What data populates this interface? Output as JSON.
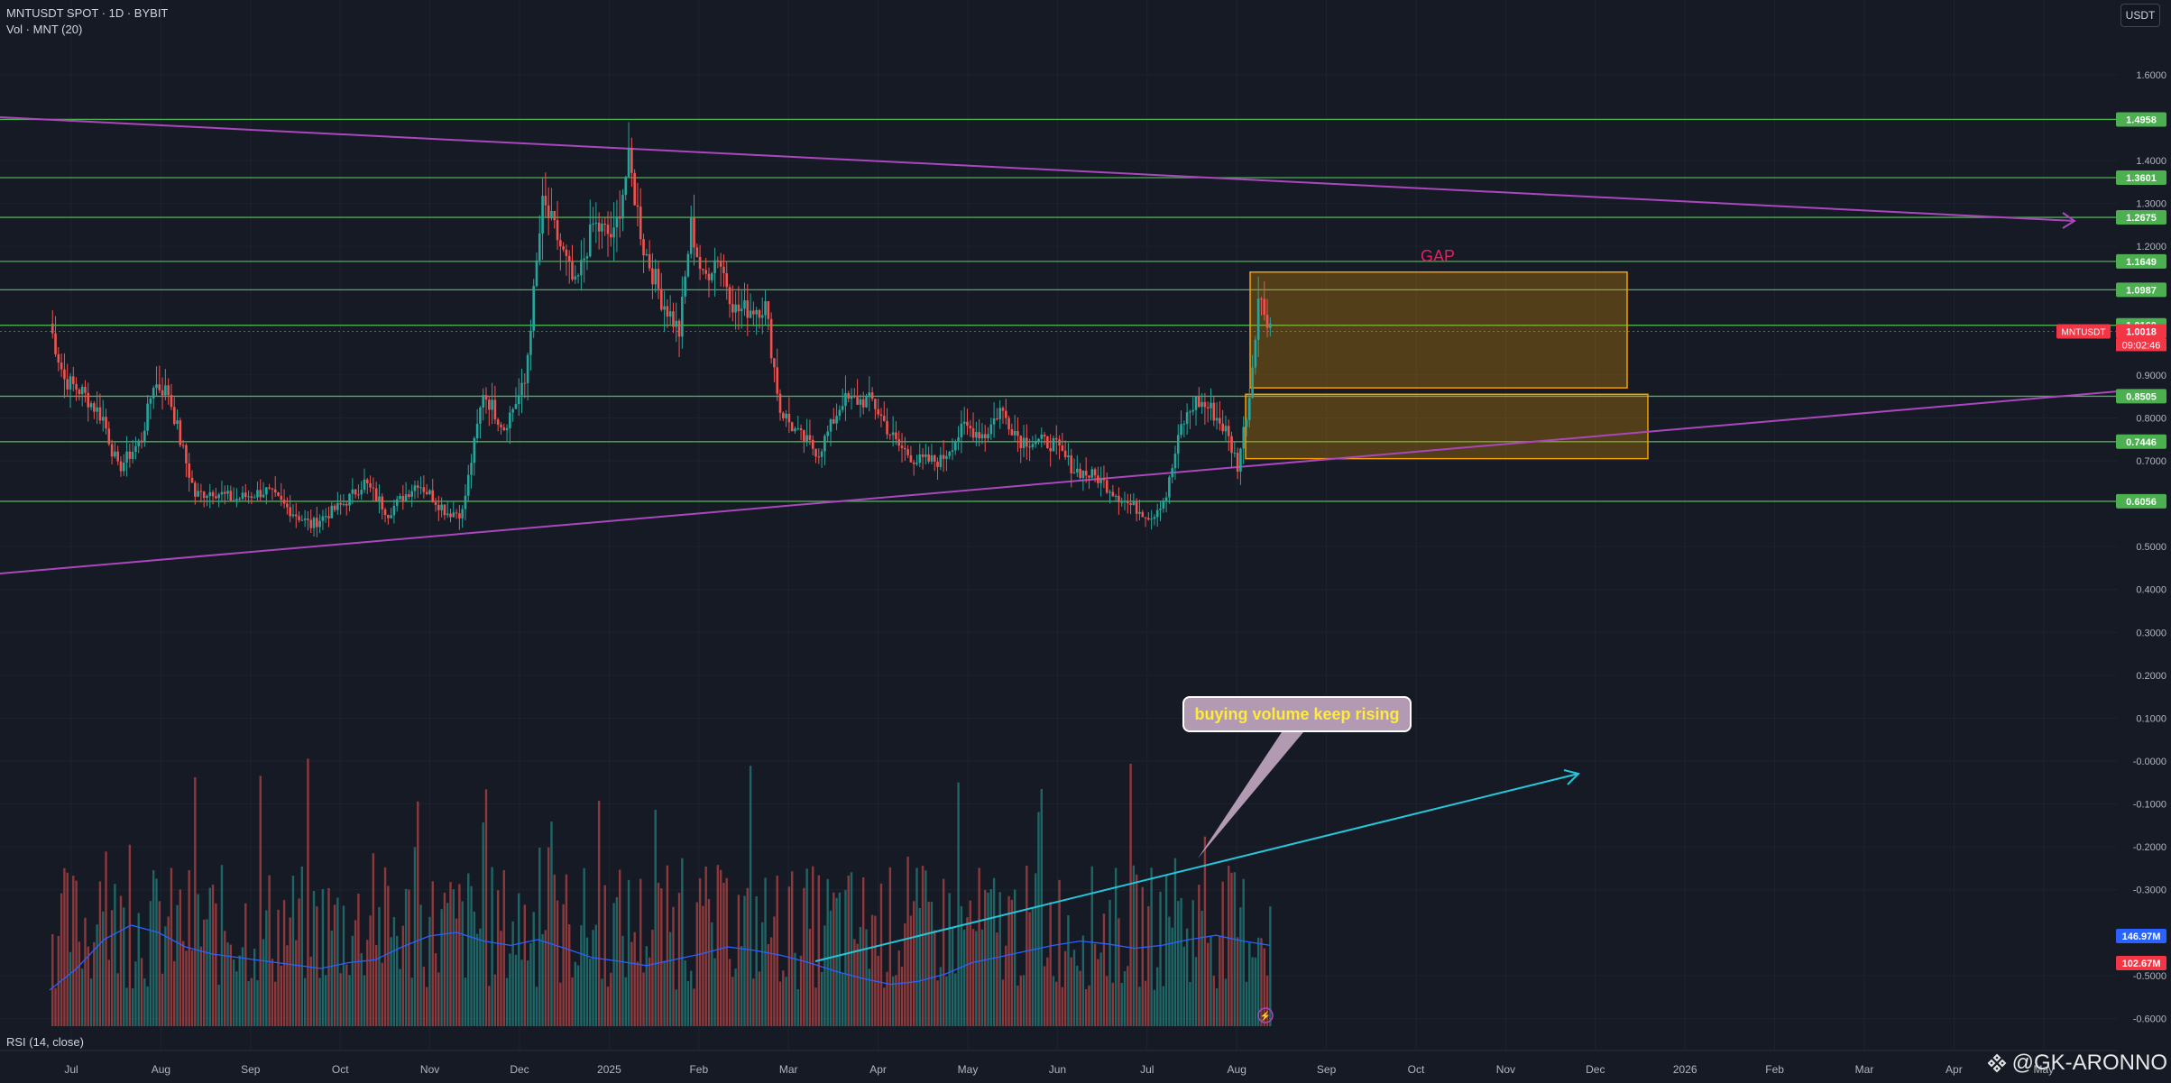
{
  "header": {
    "symbol_line": "MNTUSDT SPOT · 1D · BYBIT",
    "volume_line": "Vol · MNT (20)",
    "rsi_label": "RSI (14, close)",
    "currency_button": "USDT"
  },
  "watermark": {
    "text": "@GK-ARONNO",
    "logo_icon": "diamond-logo-icon"
  },
  "annotations": {
    "gap_label": "GAP",
    "callout_text": "buying volume keep rising"
  },
  "colors": {
    "background": "#161a25",
    "up": "#26a69a",
    "down": "#ef5350",
    "level_line": "#4caf50",
    "trendline": "#ab47bc",
    "zone": "#f59f00",
    "volume_ma": "#2962ff",
    "volume_arrow": "#26c6da",
    "gap_text": "#e91e63",
    "callout_bg": "#b39ab3",
    "callout_text": "#ffeb3b"
  },
  "chart_data": {
    "type": "candlestick",
    "title": "MNTUSDT SPOT · 1D · BYBIT",
    "y_ticks": [
      "1.6000",
      "1.4000",
      "1.3000",
      "1.2000",
      "0.9000",
      "0.8000",
      "0.7000",
      "0.5000",
      "0.4000",
      "0.3000",
      "0.2000",
      "0.1000",
      "-0.0000",
      "-0.1000",
      "-0.2000",
      "-0.3000",
      "-0.5000",
      "-0.6000"
    ],
    "x_ticks": [
      "Jul",
      "Aug",
      "Sep",
      "Oct",
      "Nov",
      "Dec",
      "2025",
      "Feb",
      "Mar",
      "Apr",
      "May",
      "Jun",
      "Jul",
      "Aug",
      "Sep",
      "Oct",
      "Nov",
      "Dec",
      "2026",
      "Feb",
      "Mar",
      "Apr",
      "May"
    ],
    "ylim": [
      -0.62,
      1.72
    ],
    "horizontal_levels": [
      {
        "value": 1.4958,
        "label": "1.4958"
      },
      {
        "value": 1.3601,
        "label": "1.3601"
      },
      {
        "value": 1.2675,
        "label": "1.2675"
      },
      {
        "value": 1.1649,
        "label": "1.1649"
      },
      {
        "value": 1.0987,
        "label": "1.0987"
      },
      {
        "value": 1.016,
        "label": "1.0160"
      },
      {
        "value": 0.8505,
        "label": "0.8505"
      },
      {
        "value": 0.7446,
        "label": "0.7446"
      },
      {
        "value": 0.6056,
        "label": "0.6056"
      }
    ],
    "last_price": {
      "symbol": "MNTUSDT",
      "value": 1.0018,
      "label": "1.0018",
      "countdown": "09:02:46"
    },
    "volume_labels": [
      {
        "label": "146.97M",
        "color": "#2962ff"
      },
      {
        "label": "102.67M",
        "color": "#f23645"
      }
    ],
    "price_path": [
      [
        "Jun 24",
        1.02
      ],
      [
        "Jun 29",
        0.89
      ],
      [
        "Jul 5",
        0.86
      ],
      [
        "Jul 12",
        0.8
      ],
      [
        "Jul 17",
        0.68
      ],
      [
        "Jul 25",
        0.75
      ],
      [
        "Jul 29",
        0.88
      ],
      [
        "Aug 3",
        0.86
      ],
      [
        "Aug 8",
        0.72
      ],
      [
        "Aug 12",
        0.62
      ],
      [
        "Aug 18",
        0.63
      ],
      [
        "Aug 25",
        0.61
      ],
      [
        "Sep 5",
        0.63
      ],
      [
        "Sep 12",
        0.59
      ],
      [
        "Sep 20",
        0.55
      ],
      [
        "Oct 1",
        0.6
      ],
      [
        "Oct 8",
        0.65
      ],
      [
        "Oct 16",
        0.58
      ],
      [
        "Oct 26",
        0.65
      ],
      [
        "Nov 5",
        0.58
      ],
      [
        "Nov 10",
        0.58
      ],
      [
        "Nov 17",
        0.86
      ],
      [
        "Nov 24",
        0.78
      ],
      [
        "Dec 1",
        0.88
      ],
      [
        "Dec 7",
        1.3
      ],
      [
        "Dec 12",
        1.22
      ],
      [
        "Dec 18",
        1.1
      ],
      [
        "Dec 24",
        1.25
      ],
      [
        "Dec 31",
        1.22
      ],
      [
        "Jan 5",
        1.4
      ],
      [
        "Jan 10",
        1.2
      ],
      [
        "Jan 16",
        1.08
      ],
      [
        "Jan 22",
        1.0
      ],
      [
        "Jan 26",
        1.25
      ],
      [
        "Jan 30",
        1.12
      ],
      [
        "Feb 4",
        1.18
      ],
      [
        "Feb 10",
        1.05
      ],
      [
        "Feb 20",
        1.06
      ],
      [
        "Feb 25",
        0.82
      ],
      [
        "Mar 3",
        0.76
      ],
      [
        "Mar 10",
        0.72
      ],
      [
        "Mar 18",
        0.84
      ],
      [
        "Mar 28",
        0.84
      ],
      [
        "Apr 5",
        0.74
      ],
      [
        "Apr 12",
        0.7
      ],
      [
        "Apr 20",
        0.7
      ],
      [
        "Apr 28",
        0.78
      ],
      [
        "May 5",
        0.76
      ],
      [
        "May 10",
        0.82
      ],
      [
        "May 17",
        0.75
      ],
      [
        "May 28",
        0.74
      ],
      [
        "Jun 4",
        0.68
      ],
      [
        "Jun 12",
        0.66
      ],
      [
        "Jun 22",
        0.6
      ],
      [
        "Jun 30",
        0.57
      ],
      [
        "Jul 5",
        0.62
      ],
      [
        "Jul 10",
        0.78
      ],
      [
        "Jul 15",
        0.84
      ],
      [
        "Jul 20",
        0.82
      ],
      [
        "Jul 25",
        0.77
      ],
      [
        "Jul 29",
        0.69
      ],
      [
        "Aug 2",
        0.85
      ],
      [
        "Aug 5",
        1.08
      ],
      [
        "Aug 9",
        1.02
      ]
    ],
    "volume_ma_path": [
      50,
      80,
      120,
      140,
      130,
      110,
      100,
      95,
      90,
      85,
      80,
      88,
      92,
      110,
      125,
      130,
      118,
      112,
      120,
      108,
      95,
      90,
      84,
      92,
      100,
      110,
      105,
      98,
      88,
      76,
      66,
      58,
      62,
      72,
      88,
      96,
      104,
      112,
      118,
      114,
      108,
      112,
      120,
      126,
      118,
      112
    ]
  }
}
